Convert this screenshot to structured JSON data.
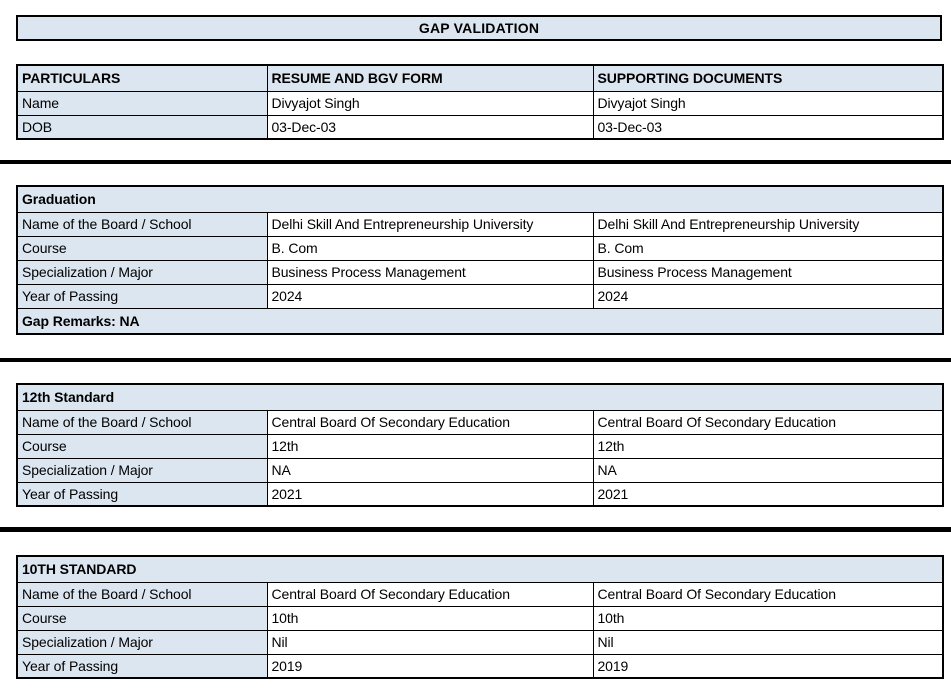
{
  "title": "GAP VALIDATION",
  "colors": {
    "header_fill": "#dce6f1",
    "border": "#000000",
    "divider": "#000000",
    "value_background": "#ffffff"
  },
  "particulars_table": {
    "headers": [
      "PARTICULARS",
      "RESUME AND BGV FORM",
      "SUPPORTING DOCUMENTS"
    ],
    "rows": [
      {
        "label": "Name",
        "resume": "Divyajot Singh",
        "documents": "Divyajot Singh"
      },
      {
        "label": "DOB",
        "resume": "03-Dec-03",
        "documents": "03-Dec-03"
      }
    ]
  },
  "sections": [
    {
      "title": "Graduation",
      "rows": [
        {
          "label": "Name of the Board / School",
          "resume": "Delhi Skill And Entrepreneurship University",
          "documents": "Delhi Skill And Entrepreneurship University"
        },
        {
          "label": "Course",
          "resume": "B. Com",
          "documents": "B. Com"
        },
        {
          "label": "Specialization / Major",
          "resume": "Business Process Management",
          "documents": "Business Process Management"
        },
        {
          "label": "Year of Passing",
          "resume": "2024",
          "documents": "2024"
        }
      ],
      "gap_remarks": "Gap Remarks: NA"
    },
    {
      "title": "12th Standard",
      "rows": [
        {
          "label": "Name of the Board / School",
          "resume": "Central Board Of Secondary Education",
          "documents": "Central Board Of Secondary Education"
        },
        {
          "label": "Course",
          "resume": "12th",
          "documents": "12th"
        },
        {
          "label": "Specialization / Major",
          "resume": "NA",
          "documents": "NA"
        },
        {
          "label": "Year of Passing",
          "resume": "2021",
          "documents": "2021"
        }
      ]
    },
    {
      "title": "10TH STANDARD",
      "rows": [
        {
          "label": "Name of the Board / School",
          "resume": "Central Board Of Secondary Education",
          "documents": "Central Board Of Secondary Education"
        },
        {
          "label": "Course",
          "resume": "10th",
          "documents": "10th"
        },
        {
          "label": "Specialization / Major",
          "resume": "Nil",
          "documents": "Nil"
        },
        {
          "label": "Year of Passing",
          "resume": "2019",
          "documents": "2019"
        }
      ]
    }
  ]
}
